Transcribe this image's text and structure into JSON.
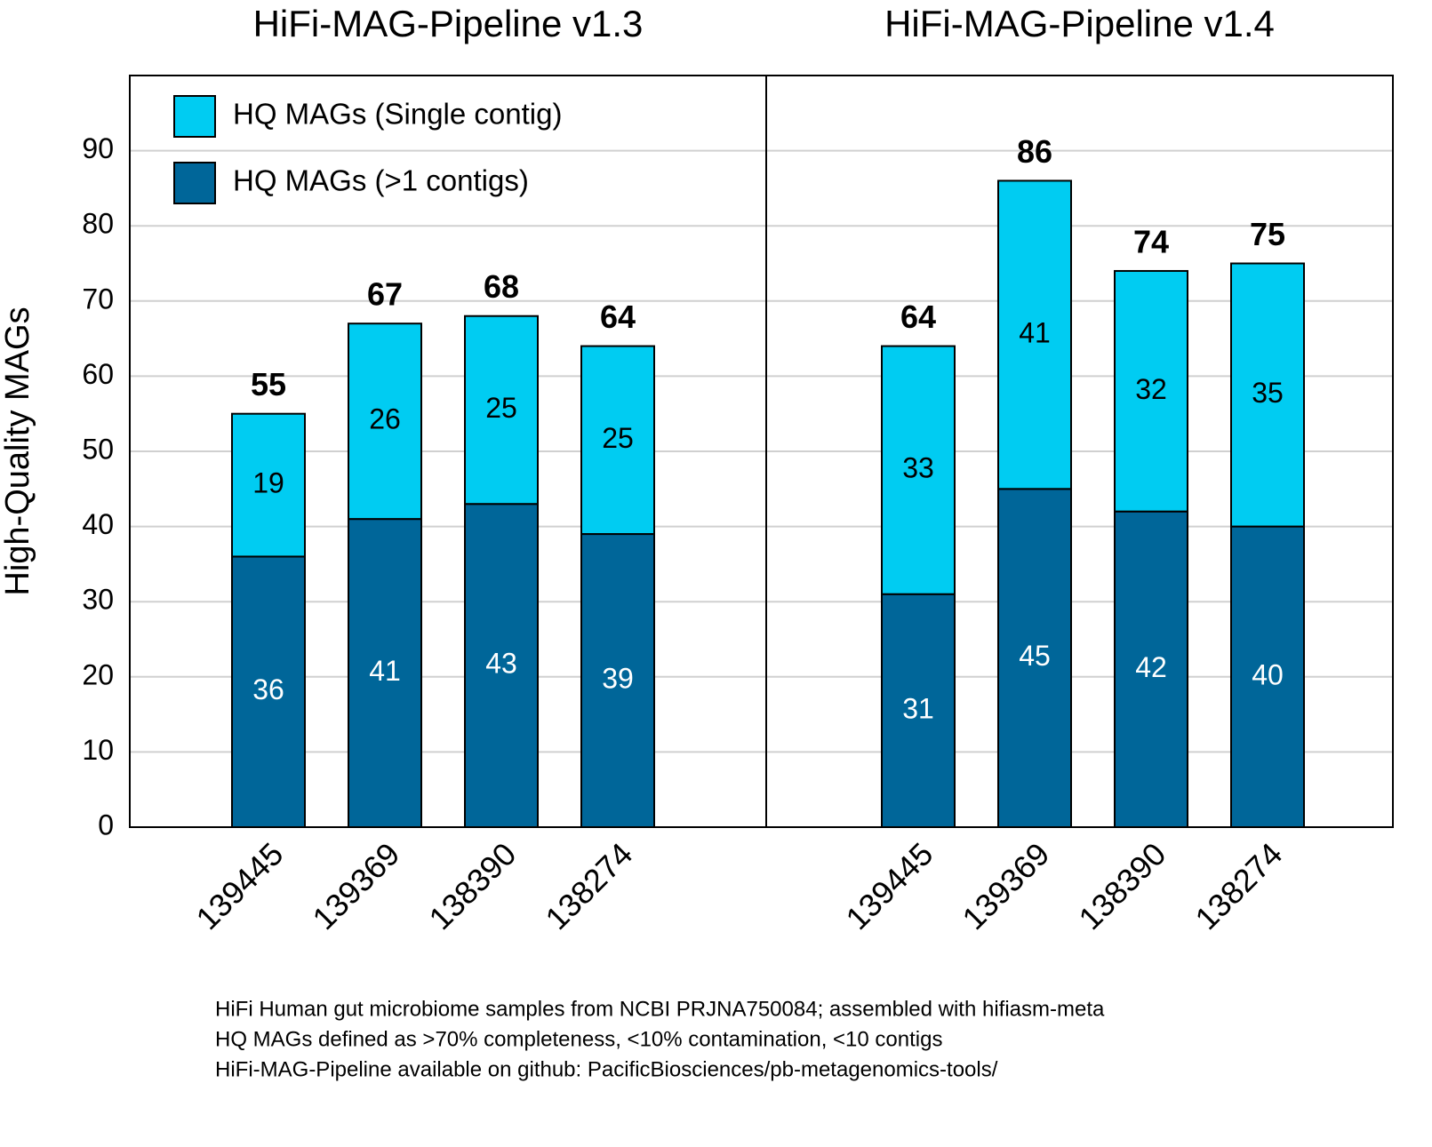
{
  "chart_data": [
    {
      "type": "stacked-bar",
      "title": "HiFi-MAG-Pipeline v1.3",
      "y_label": "High-Quality MAGs",
      "categories": [
        "139445",
        "139369",
        "138390",
        "138274"
      ],
      "series": [
        {
          "name": "HQ MAGs (>1 contigs)",
          "color": "#006699",
          "values": [
            36,
            41,
            43,
            39
          ]
        },
        {
          "name": "HQ MAGs (Single contig)",
          "color": "#00ccf2",
          "values": [
            19,
            26,
            25,
            25
          ]
        }
      ],
      "totals": [
        55,
        67,
        68,
        64
      ],
      "ylim": [
        0,
        100
      ],
      "yticks": [
        0,
        10,
        20,
        30,
        40,
        50,
        60,
        70,
        80,
        90
      ],
      "grid": true,
      "legend": "upper left"
    },
    {
      "type": "stacked-bar",
      "title": "HiFi-MAG-Pipeline v1.4",
      "categories": [
        "139445",
        "139369",
        "138390",
        "138274"
      ],
      "series": [
        {
          "color": "#006699",
          "values": [
            31,
            45,
            42,
            40
          ]
        },
        {
          "color": "#00ccf2",
          "values": [
            33,
            41,
            32,
            35
          ]
        }
      ],
      "totals": [
        64,
        86,
        74,
        75
      ],
      "ylim": [
        0,
        100
      ]
    }
  ],
  "notes": [
    "HiFi Human gut microbiome samples from NCBI PRJNA750084; assembled with hifiasm-meta",
    "HQ MAGs defined as >70% completeness, <10% contamination, <10 contigs",
    "HiFi-MAG-Pipeline available on github: PacificBiosciences/pb-metagenomics-tools/"
  ]
}
